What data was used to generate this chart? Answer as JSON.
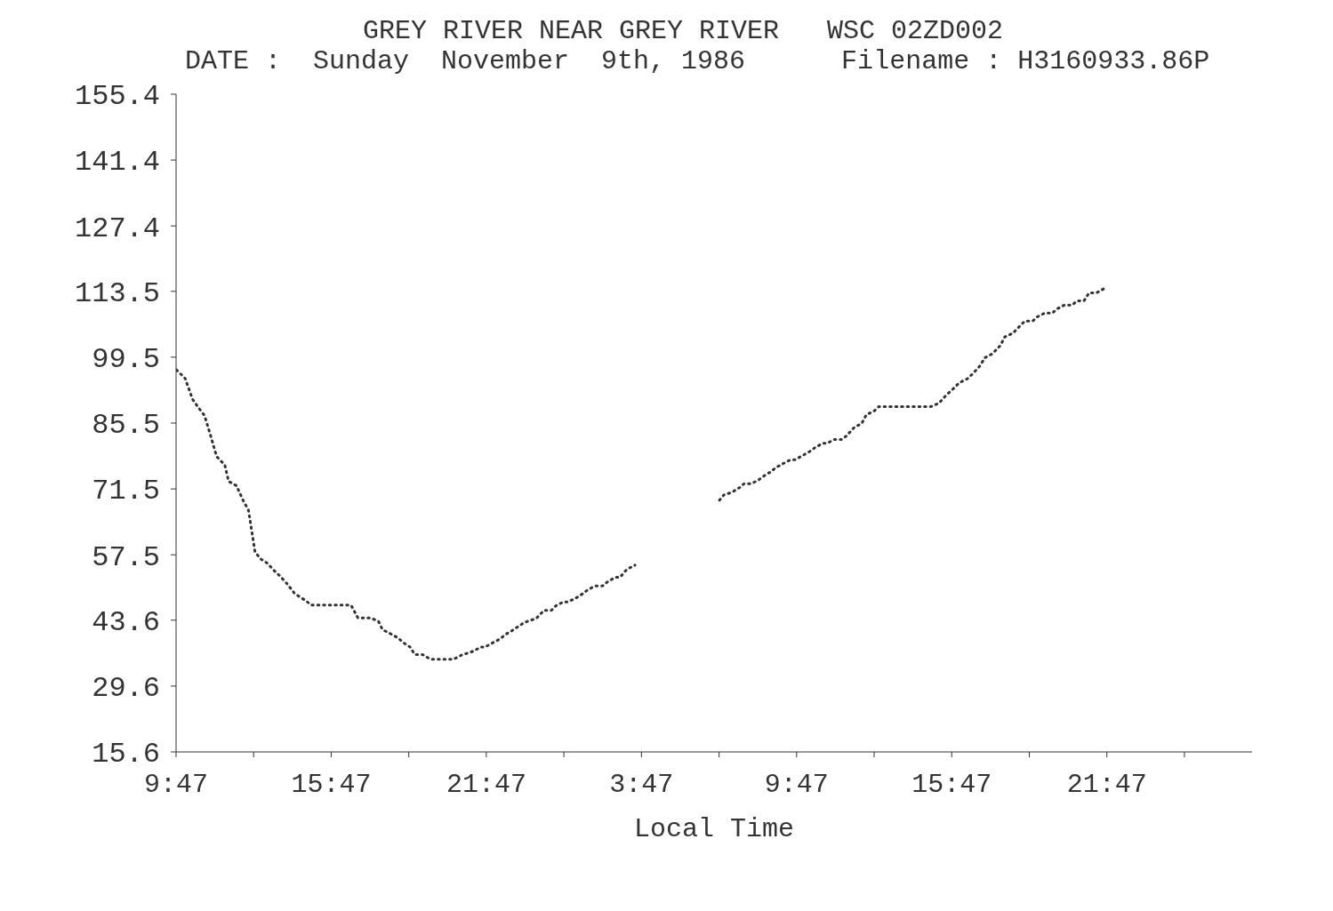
{
  "chart_data": {
    "type": "line",
    "title": "GREY RIVER NEAR GREY RIVER   WSC 02ZD002",
    "subtitle": "DATE :  Sunday  November  9th, 1986      Filename : H3160933.86P",
    "xlabel": "Local Time",
    "line_style": "dotted",
    "x": [
      "1986-11-09T09:48",
      "1986-11-09T10:08",
      "1986-11-09T10:25",
      "1986-11-09T10:37",
      "1986-11-09T10:53",
      "1986-11-09T11:05",
      "1986-11-09T11:21",
      "1986-11-09T11:40",
      "1986-11-09T11:49",
      "1986-11-09T12:07",
      "1986-11-09T12:24",
      "1986-11-09T12:35",
      "1986-11-09T12:50",
      "1986-11-09T13:02",
      "1986-11-09T13:19",
      "1986-11-09T13:36",
      "1986-11-09T13:47",
      "1986-11-09T14:05",
      "1986-11-09T14:21",
      "1986-11-09T14:33",
      "1986-11-09T14:49",
      "1986-11-09T15:00",
      "1986-11-09T16:33",
      "1986-11-09T16:49",
      "1986-11-09T17:19",
      "1986-11-09T17:37",
      "1986-11-09T17:46",
      "1986-11-09T18:05",
      "1986-11-09T18:23",
      "1986-11-09T18:33",
      "1986-11-09T18:50",
      "1986-11-09T19:01",
      "1986-11-09T19:19",
      "1986-11-09T19:37",
      "1986-11-09T20:31",
      "1986-11-09T20:50",
      "1986-11-09T21:17",
      "1986-11-09T21:34",
      "1986-11-09T21:44",
      "1986-11-09T22:02",
      "1986-11-09T22:19",
      "1986-11-09T22:30",
      "1986-11-09T22:47",
      "1986-11-09T23:15",
      "1986-11-09T23:43",
      "1986-11-10T00:01",
      "1986-11-10T00:18",
      "1986-11-10T00:29",
      "1986-11-10T00:46",
      "1986-11-10T00:56",
      "1986-11-10T01:15",
      "1986-11-10T01:32",
      "1986-11-10T01:43",
      "1986-11-10T02:00",
      "1986-11-10T02:17",
      "1986-11-10T02:29",
      "1986-11-10T02:46",
      "1986-11-10T02:57",
      "1986-11-10T03:13",
      "1986-11-10T03:32",
      "1986-11-10T05:12",
      "1986-11-10T06:48",
      "1986-11-10T06:58",
      "1986-11-10T07:17",
      "1986-11-10T07:35",
      "1986-11-10T07:45",
      "1986-11-10T08:02",
      "1986-11-10T08:20",
      "1986-11-10T08:32",
      "1986-11-10T08:48",
      "1986-11-10T08:58",
      "1986-11-10T09:16",
      "1986-11-10T09:33",
      "1986-11-10T09:43",
      "1986-11-10T10:01",
      "1986-11-10T10:18",
      "1986-11-10T10:30",
      "1986-11-10T10:48",
      "1986-11-10T10:58",
      "1986-11-10T11:14",
      "1986-11-10T11:32",
      "1986-11-10T11:43",
      "1986-11-10T12:01",
      "1986-11-10T12:18",
      "1986-11-10T12:29",
      "1986-11-10T12:46",
      "1986-11-10T12:58",
      "1986-11-10T14:59",
      "1986-11-10T15:17",
      "1986-11-10T15:35",
      "1986-11-10T15:46",
      "1986-11-10T16:05",
      "1986-11-10T16:23",
      "1986-11-10T16:35",
      "1986-11-10T16:52",
      "1986-11-10T17:04",
      "1986-11-10T17:21",
      "1986-11-10T17:40",
      "1986-11-10T17:50",
      "1986-11-10T18:09",
      "1986-11-10T18:27",
      "1986-11-10T18:37",
      "1986-11-10T18:55",
      "1986-11-10T19:06",
      "1986-11-10T19:23",
      "1986-11-10T19:41",
      "1986-11-10T19:52",
      "1986-11-10T20:09",
      "1986-11-10T20:27",
      "1986-11-10T20:38",
      "1986-11-10T20:54",
      "1986-11-10T21:06",
      "1986-11-10T21:23",
      "1986-11-10T21:41"
    ],
    "series": [
      {
        "color": "#333333",
        "values": [
          96.8,
          95.0,
          90.6,
          89.0,
          87.1,
          83.5,
          78.4,
          76.6,
          73.1,
          72.2,
          68.8,
          67.0,
          58.2,
          56.7,
          55.7,
          54.0,
          53.1,
          51.3,
          49.4,
          48.6,
          47.7,
          46.8,
          46.8,
          44.1,
          44.1,
          43.3,
          41.6,
          40.7,
          39.8,
          38.9,
          37.9,
          36.3,
          36.3,
          35.3,
          35.3,
          36.2,
          37.0,
          37.9,
          37.9,
          38.8,
          39.6,
          40.5,
          41.4,
          43.1,
          44.0,
          45.7,
          45.7,
          46.7,
          47.5,
          47.5,
          48.3,
          49.3,
          50.1,
          50.9,
          50.9,
          51.8,
          52.7,
          52.7,
          54.4,
          55.3,
          null,
          69.1,
          70.2,
          70.8,
          71.8,
          72.6,
          72.6,
          73.5,
          74.3,
          75.2,
          76.0,
          76.9,
          77.7,
          77.7,
          78.6,
          79.5,
          80.3,
          81.2,
          81.2,
          82.0,
          82.0,
          82.8,
          84.6,
          85.4,
          87.3,
          88.0,
          89.0,
          89.0,
          89.7,
          91.5,
          92.4,
          94.1,
          94.9,
          95.9,
          97.6,
          99.4,
          100.2,
          102.0,
          103.8,
          104.6,
          106.3,
          107.2,
          107.2,
          108.1,
          108.9,
          108.9,
          109.8,
          110.6,
          110.6,
          111.5,
          111.5,
          113.2,
          113.2,
          114.1
        ]
      }
    ],
    "xlim": [
      "1986-11-09T09:47",
      "1986-11-11T03:24"
    ],
    "xticks": [
      {
        "value": "1986-11-09T09:47",
        "label": "9:47"
      },
      {
        "value": "1986-11-09T12:47",
        "label": null
      },
      {
        "value": "1986-11-09T15:47",
        "label": "15:47"
      },
      {
        "value": "1986-11-09T18:47",
        "label": null
      },
      {
        "value": "1986-11-09T21:47",
        "label": "21:47"
      },
      {
        "value": "1986-11-10T00:47",
        "label": null
      },
      {
        "value": "1986-11-10T03:47",
        "label": "3:47"
      },
      {
        "value": "1986-11-10T06:47",
        "label": null
      },
      {
        "value": "1986-11-10T09:47",
        "label": "9:47"
      },
      {
        "value": "1986-11-10T12:47",
        "label": null
      },
      {
        "value": "1986-11-10T15:47",
        "label": "15:47"
      },
      {
        "value": "1986-11-10T18:47",
        "label": null
      },
      {
        "value": "1986-11-10T21:47",
        "label": "21:47"
      },
      {
        "value": "1986-11-11T00:47",
        "label": null
      }
    ],
    "ylim": [
      15.6,
      155.4
    ],
    "yticks": [
      15.6,
      29.6,
      43.6,
      57.5,
      71.5,
      85.5,
      99.5,
      113.5,
      127.4,
      141.4,
      155.4
    ]
  }
}
